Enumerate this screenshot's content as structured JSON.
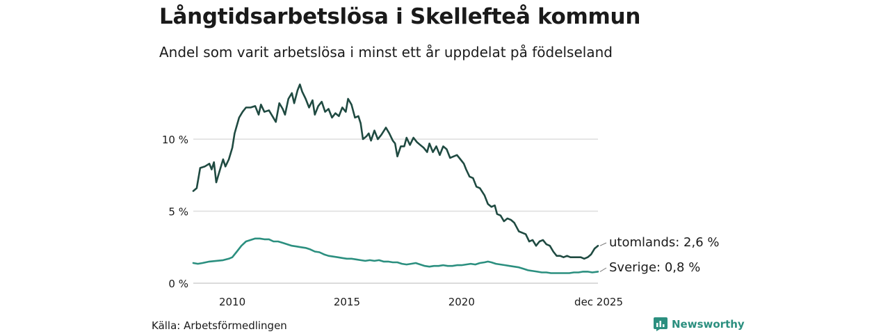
{
  "header": {
    "title": "Långtidsarbetslösa i Skellefteå kommun",
    "subtitle": "Andel som varit arbetslösa i minst ett år uppdelat på födelseland"
  },
  "footer": {
    "source": "Källa: Arbetsförmedlingen",
    "brand": "Newsworthy"
  },
  "colors": {
    "utomlands": "#1f4a41",
    "sverige": "#2b8f7f",
    "grid": "#dddddd",
    "brand": "#2b8f7f"
  },
  "chart_data": {
    "type": "line",
    "title": "Långtidsarbetslösa i Skellefteå kommun",
    "subtitle": "Andel som varit arbetslösa i minst ett år uppdelat på födelseland",
    "xlabel": "",
    "ylabel": "",
    "xlim": [
      2008.3,
      2025.95
    ],
    "ylim": [
      0,
      13.5
    ],
    "y_ticks": [
      {
        "value": 0,
        "label": "0 %"
      },
      {
        "value": 5,
        "label": "5 %"
      },
      {
        "value": 10,
        "label": "10 %"
      }
    ],
    "x_ticks": [
      {
        "value": 2010,
        "label": "2010"
      },
      {
        "value": 2015,
        "label": "2015"
      },
      {
        "value": 2020,
        "label": "2020"
      },
      {
        "value": 2025.95,
        "label": "dec 2025"
      }
    ],
    "grid": true,
    "series": [
      {
        "name": "utomlands",
        "end_label": "utomlands: 2,6 %",
        "points": [
          [
            2008.3,
            6.4
          ],
          [
            2008.45,
            6.6
          ],
          [
            2008.6,
            8.0
          ],
          [
            2008.8,
            8.1
          ],
          [
            2009.0,
            8.3
          ],
          [
            2009.1,
            7.9
          ],
          [
            2009.2,
            8.4
          ],
          [
            2009.3,
            7.0
          ],
          [
            2009.45,
            7.8
          ],
          [
            2009.6,
            8.6
          ],
          [
            2009.7,
            8.1
          ],
          [
            2009.85,
            8.6
          ],
          [
            2010.0,
            9.4
          ],
          [
            2010.1,
            10.4
          ],
          [
            2010.3,
            11.5
          ],
          [
            2010.45,
            11.9
          ],
          [
            2010.6,
            12.2
          ],
          [
            2010.8,
            12.2
          ],
          [
            2011.0,
            12.3
          ],
          [
            2011.15,
            11.7
          ],
          [
            2011.25,
            12.4
          ],
          [
            2011.4,
            11.9
          ],
          [
            2011.6,
            12.0
          ],
          [
            2011.75,
            11.6
          ],
          [
            2011.9,
            11.2
          ],
          [
            2012.05,
            12.5
          ],
          [
            2012.2,
            12.1
          ],
          [
            2012.3,
            11.7
          ],
          [
            2012.45,
            12.8
          ],
          [
            2012.6,
            13.2
          ],
          [
            2012.7,
            12.5
          ],
          [
            2012.85,
            13.4
          ],
          [
            2012.95,
            13.8
          ],
          [
            2013.05,
            13.3
          ],
          [
            2013.2,
            12.8
          ],
          [
            2013.35,
            12.2
          ],
          [
            2013.5,
            12.7
          ],
          [
            2013.6,
            11.7
          ],
          [
            2013.75,
            12.3
          ],
          [
            2013.9,
            12.6
          ],
          [
            2014.05,
            11.9
          ],
          [
            2014.2,
            12.1
          ],
          [
            2014.35,
            11.5
          ],
          [
            2014.5,
            11.8
          ],
          [
            2014.65,
            11.6
          ],
          [
            2014.8,
            12.2
          ],
          [
            2014.95,
            11.9
          ],
          [
            2015.05,
            12.8
          ],
          [
            2015.2,
            12.4
          ],
          [
            2015.35,
            11.5
          ],
          [
            2015.5,
            11.6
          ],
          [
            2015.6,
            11.1
          ],
          [
            2015.7,
            10.0
          ],
          [
            2015.85,
            10.2
          ],
          [
            2015.95,
            10.4
          ],
          [
            2016.05,
            9.9
          ],
          [
            2016.2,
            10.6
          ],
          [
            2016.35,
            10.0
          ],
          [
            2016.5,
            10.3
          ],
          [
            2016.7,
            10.8
          ],
          [
            2016.85,
            10.4
          ],
          [
            2017.0,
            9.9
          ],
          [
            2017.1,
            9.7
          ],
          [
            2017.2,
            8.8
          ],
          [
            2017.35,
            9.5
          ],
          [
            2017.5,
            9.5
          ],
          [
            2017.6,
            10.1
          ],
          [
            2017.75,
            9.6
          ],
          [
            2017.9,
            10.1
          ],
          [
            2018.05,
            9.8
          ],
          [
            2018.2,
            9.6
          ],
          [
            2018.35,
            9.4
          ],
          [
            2018.5,
            9.1
          ],
          [
            2018.6,
            9.7
          ],
          [
            2018.75,
            9.1
          ],
          [
            2018.9,
            9.5
          ],
          [
            2019.05,
            8.9
          ],
          [
            2019.2,
            9.5
          ],
          [
            2019.35,
            9.3
          ],
          [
            2019.5,
            8.7
          ],
          [
            2019.65,
            8.8
          ],
          [
            2019.8,
            8.9
          ],
          [
            2019.95,
            8.6
          ],
          [
            2020.1,
            8.3
          ],
          [
            2020.2,
            7.9
          ],
          [
            2020.35,
            7.4
          ],
          [
            2020.5,
            7.3
          ],
          [
            2020.65,
            6.7
          ],
          [
            2020.8,
            6.6
          ],
          [
            2021.0,
            6.1
          ],
          [
            2021.15,
            5.5
          ],
          [
            2021.3,
            5.3
          ],
          [
            2021.45,
            5.4
          ],
          [
            2021.55,
            4.8
          ],
          [
            2021.7,
            4.7
          ],
          [
            2021.85,
            4.3
          ],
          [
            2022.0,
            4.5
          ],
          [
            2022.15,
            4.4
          ],
          [
            2022.3,
            4.2
          ],
          [
            2022.4,
            3.9
          ],
          [
            2022.5,
            3.6
          ],
          [
            2022.65,
            3.5
          ],
          [
            2022.8,
            3.4
          ],
          [
            2022.95,
            2.9
          ],
          [
            2023.1,
            3.0
          ],
          [
            2023.25,
            2.6
          ],
          [
            2023.4,
            2.9
          ],
          [
            2023.55,
            3.0
          ],
          [
            2023.7,
            2.7
          ],
          [
            2023.85,
            2.6
          ],
          [
            2024.0,
            2.2
          ],
          [
            2024.15,
            1.9
          ],
          [
            2024.3,
            1.9
          ],
          [
            2024.45,
            1.8
          ],
          [
            2024.6,
            1.9
          ],
          [
            2024.75,
            1.8
          ],
          [
            2024.9,
            1.8
          ],
          [
            2025.05,
            1.8
          ],
          [
            2025.2,
            1.8
          ],
          [
            2025.35,
            1.7
          ],
          [
            2025.5,
            1.8
          ],
          [
            2025.65,
            2.0
          ],
          [
            2025.8,
            2.4
          ],
          [
            2025.95,
            2.6
          ]
        ]
      },
      {
        "name": "Sverige",
        "end_label": "Sverige: 0,8 %",
        "points": [
          [
            2008.3,
            1.4
          ],
          [
            2008.5,
            1.35
          ],
          [
            2008.7,
            1.4
          ],
          [
            2009.0,
            1.5
          ],
          [
            2009.3,
            1.55
          ],
          [
            2009.6,
            1.6
          ],
          [
            2009.85,
            1.7
          ],
          [
            2010.0,
            1.8
          ],
          [
            2010.2,
            2.2
          ],
          [
            2010.4,
            2.6
          ],
          [
            2010.6,
            2.9
          ],
          [
            2010.8,
            3.0
          ],
          [
            2011.0,
            3.1
          ],
          [
            2011.2,
            3.1
          ],
          [
            2011.4,
            3.05
          ],
          [
            2011.6,
            3.05
          ],
          [
            2011.8,
            2.9
          ],
          [
            2012.0,
            2.9
          ],
          [
            2012.2,
            2.8
          ],
          [
            2012.4,
            2.7
          ],
          [
            2012.6,
            2.6
          ],
          [
            2012.8,
            2.55
          ],
          [
            2013.0,
            2.5
          ],
          [
            2013.2,
            2.45
          ],
          [
            2013.4,
            2.35
          ],
          [
            2013.6,
            2.2
          ],
          [
            2013.8,
            2.15
          ],
          [
            2014.0,
            2.0
          ],
          [
            2014.2,
            1.9
          ],
          [
            2014.4,
            1.85
          ],
          [
            2014.6,
            1.8
          ],
          [
            2014.8,
            1.75
          ],
          [
            2015.0,
            1.7
          ],
          [
            2015.2,
            1.7
          ],
          [
            2015.4,
            1.65
          ],
          [
            2015.6,
            1.6
          ],
          [
            2015.8,
            1.55
          ],
          [
            2016.0,
            1.6
          ],
          [
            2016.2,
            1.55
          ],
          [
            2016.4,
            1.6
          ],
          [
            2016.6,
            1.5
          ],
          [
            2016.8,
            1.5
          ],
          [
            2017.0,
            1.45
          ],
          [
            2017.2,
            1.45
          ],
          [
            2017.4,
            1.35
          ],
          [
            2017.6,
            1.3
          ],
          [
            2017.8,
            1.35
          ],
          [
            2018.0,
            1.4
          ],
          [
            2018.2,
            1.3
          ],
          [
            2018.4,
            1.2
          ],
          [
            2018.6,
            1.15
          ],
          [
            2018.8,
            1.2
          ],
          [
            2019.0,
            1.2
          ],
          [
            2019.2,
            1.25
          ],
          [
            2019.4,
            1.2
          ],
          [
            2019.6,
            1.2
          ],
          [
            2019.8,
            1.25
          ],
          [
            2020.0,
            1.25
          ],
          [
            2020.2,
            1.3
          ],
          [
            2020.4,
            1.35
          ],
          [
            2020.6,
            1.3
          ],
          [
            2020.8,
            1.4
          ],
          [
            2021.0,
            1.45
          ],
          [
            2021.15,
            1.5
          ],
          [
            2021.3,
            1.45
          ],
          [
            2021.5,
            1.35
          ],
          [
            2021.7,
            1.3
          ],
          [
            2021.9,
            1.25
          ],
          [
            2022.1,
            1.2
          ],
          [
            2022.3,
            1.15
          ],
          [
            2022.5,
            1.1
          ],
          [
            2022.7,
            1.0
          ],
          [
            2022.9,
            0.9
          ],
          [
            2023.1,
            0.85
          ],
          [
            2023.3,
            0.8
          ],
          [
            2023.5,
            0.75
          ],
          [
            2023.7,
            0.75
          ],
          [
            2023.9,
            0.7
          ],
          [
            2024.1,
            0.7
          ],
          [
            2024.3,
            0.7
          ],
          [
            2024.5,
            0.7
          ],
          [
            2024.7,
            0.7
          ],
          [
            2024.9,
            0.75
          ],
          [
            2025.1,
            0.75
          ],
          [
            2025.3,
            0.8
          ],
          [
            2025.5,
            0.8
          ],
          [
            2025.7,
            0.75
          ],
          [
            2025.95,
            0.8
          ]
        ]
      }
    ]
  }
}
